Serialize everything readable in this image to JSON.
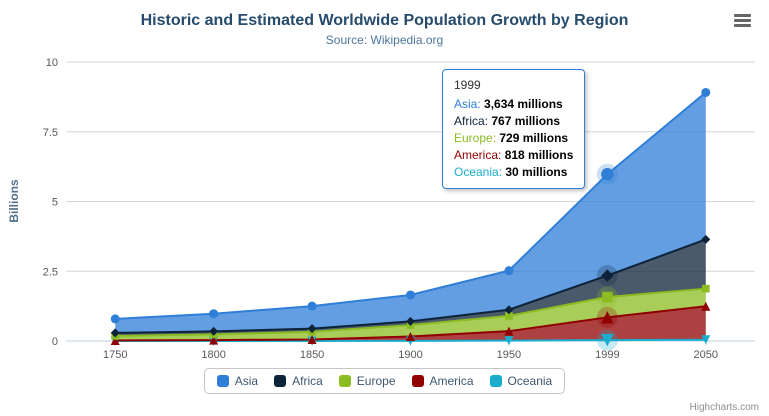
{
  "title": "Historic and Estimated Worldwide Population Growth by Region",
  "subtitle": "Source: Wikipedia.org",
  "credits": "Highcharts.com",
  "chart_data": {
    "type": "area",
    "stacking": "normal",
    "title": "Historic and Estimated Worldwide Population Growth by Region",
    "subtitle": "Source: Wikipedia.org",
    "xlabel": "",
    "ylabel": "Billions",
    "ylim": [
      0,
      10
    ],
    "yticks": [
      0,
      2.5,
      5,
      7.5,
      10
    ],
    "categories": [
      "1750",
      "1800",
      "1850",
      "1900",
      "1950",
      "1999",
      "2050"
    ],
    "values_unit": "millions",
    "grid": true,
    "legend_position": "bottom",
    "series": [
      {
        "name": "Asia",
        "color": "#2f7ed8",
        "marker": "circle",
        "values": [
          502,
          635,
          809,
          947,
          1402,
          3634,
          5268
        ]
      },
      {
        "name": "Africa",
        "color": "#0d233a",
        "marker": "diamond",
        "values": [
          106,
          107,
          111,
          133,
          221,
          767,
          1766
        ]
      },
      {
        "name": "Europe",
        "color": "#8bbc21",
        "marker": "square",
        "values": [
          163,
          203,
          276,
          408,
          547,
          729,
          628
        ]
      },
      {
        "name": "America",
        "color": "#910000",
        "marker": "triangle",
        "values": [
          18,
          31,
          54,
          156,
          339,
          818,
          1201
        ]
      },
      {
        "name": "Oceania",
        "color": "#1aadce",
        "marker": "triangle-down",
        "values": [
          2,
          2,
          2,
          6,
          13,
          30,
          46
        ]
      }
    ]
  },
  "tooltip": {
    "header": "1999",
    "hover_category_index": 5,
    "border_color": "#2f7ed8",
    "rows": [
      {
        "label": "Asia",
        "value": "3,634 millions",
        "color": "#2f7ed8"
      },
      {
        "label": "Africa",
        "value": "767 millions",
        "color": "#0d233a"
      },
      {
        "label": "Europe",
        "value": "729 millions",
        "color": "#8bbc21"
      },
      {
        "label": "America",
        "value": "818 millions",
        "color": "#910000"
      },
      {
        "label": "Oceania",
        "value": "30 millions",
        "color": "#1aadce"
      }
    ]
  }
}
